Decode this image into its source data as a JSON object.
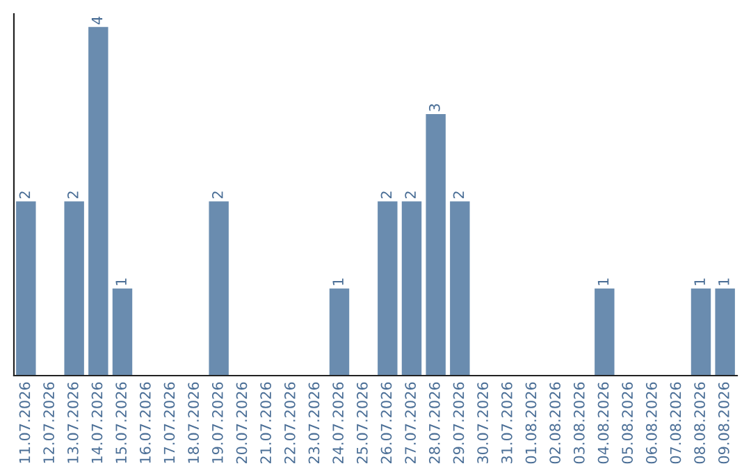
{
  "chart_data": {
    "type": "bar",
    "categories": [
      "11.07.2026",
      "12.07.2026",
      "13.07.2026",
      "14.07.2026",
      "15.07.2026",
      "16.07.2026",
      "17.07.2026",
      "18.07.2026",
      "19.07.2026",
      "20.07.2026",
      "21.07.2026",
      "22.07.2026",
      "23.07.2026",
      "24.07.2026",
      "25.07.2026",
      "26.07.2026",
      "27.07.2026",
      "28.07.2026",
      "29.07.2026",
      "30.07.2026",
      "31.07.2026",
      "01.08.2026",
      "02.08.2026",
      "03.08.2026",
      "04.08.2026",
      "05.08.2026",
      "06.08.2026",
      "07.08.2026",
      "08.08.2026",
      "09.08.2026"
    ],
    "values": [
      2,
      0,
      2,
      4,
      1,
      0,
      0,
      0,
      2,
      0,
      0,
      0,
      0,
      1,
      0,
      2,
      2,
      3,
      2,
      0,
      0,
      0,
      0,
      0,
      1,
      0,
      0,
      0,
      1,
      1
    ],
    "value_labels": [
      "2",
      null,
      "2",
      "4",
      "1",
      null,
      null,
      null,
      "2",
      null,
      null,
      null,
      null,
      "1",
      null,
      "2",
      "2",
      "3",
      "2",
      null,
      null,
      null,
      null,
      null,
      "1",
      null,
      null,
      null,
      "1",
      "1"
    ],
    "color": "#6a8caf",
    "ylim": [
      0,
      4.15
    ],
    "tick_labels": "x",
    "grid": false
  }
}
